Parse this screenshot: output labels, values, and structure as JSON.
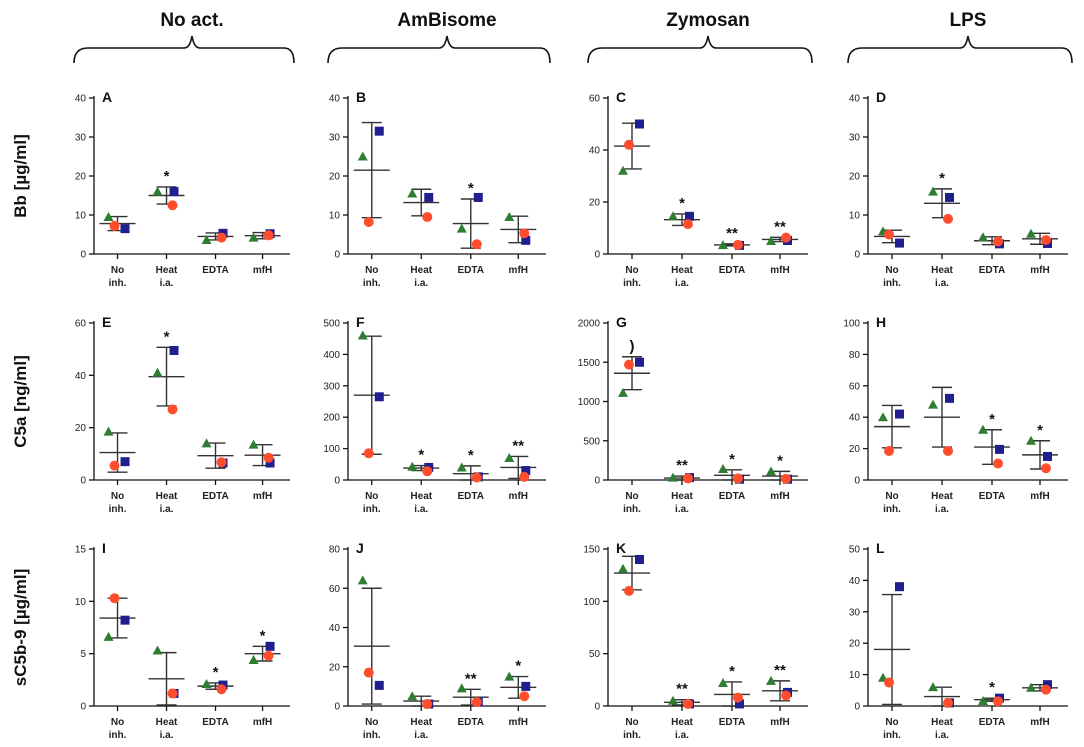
{
  "colors": {
    "square": "#1f1f8f",
    "triangle": "#2e7d32",
    "circle": "#ff4d2e",
    "axis": "#111111"
  },
  "chart_data": {
    "type": "scatter",
    "description_type": "mean-sd-dotplot",
    "columns": [
      "No act.",
      "AmBisome",
      "Zymosan",
      "LPS"
    ],
    "rows": [
      {
        "label": "Bb [µg/ml]"
      },
      {
        "label": "C5a [ng/ml]"
      },
      {
        "label": "sC5b-9 [µg/ml]"
      }
    ],
    "categories": [
      [
        "No",
        "inh."
      ],
      [
        "Heat",
        "i.a."
      ],
      [
        "EDTA"
      ],
      [
        "mfH"
      ]
    ],
    "panels": [
      {
        "letter": "A",
        "ylim": [
          0,
          40
        ],
        "yticks": [
          0,
          10,
          20,
          30,
          40
        ],
        "groups": [
          {
            "mean": 7.8,
            "sd": 1.8,
            "square": 6.5,
            "triangle": 9.5,
            "circle": 7.2,
            "sig": ""
          },
          {
            "mean": 15,
            "sd": 2.2,
            "square": 16,
            "triangle": 16,
            "circle": 12.5,
            "sig": "*"
          },
          {
            "mean": 4.5,
            "sd": 0.9,
            "square": 5.3,
            "triangle": 3.6,
            "circle": 4.2,
            "sig": ""
          },
          {
            "mean": 4.7,
            "sd": 0.8,
            "square": 5.2,
            "triangle": 4.2,
            "circle": 4.8,
            "sig": ""
          }
        ]
      },
      {
        "letter": "B",
        "ylim": [
          0,
          40
        ],
        "yticks": [
          0,
          10,
          20,
          30,
          40
        ],
        "groups": [
          {
            "mean": 21.5,
            "sd": 12.2,
            "square": 31.5,
            "triangle": 25,
            "circle": 8.2,
            "sig": ""
          },
          {
            "mean": 13.2,
            "sd": 3.4,
            "square": 14.5,
            "triangle": 15.5,
            "circle": 9.5,
            "sig": ""
          },
          {
            "mean": 7.8,
            "sd": 6.3,
            "square": 14.5,
            "triangle": 6.5,
            "circle": 2.5,
            "sig": "*"
          },
          {
            "mean": 6.3,
            "sd": 3.4,
            "square": 3.5,
            "triangle": 9.5,
            "circle": 5.3,
            "sig": ""
          }
        ]
      },
      {
        "letter": "C",
        "ylim": [
          0,
          60
        ],
        "yticks": [
          0,
          20,
          40,
          60
        ],
        "groups": [
          {
            "mean": 41.5,
            "sd": 8.8,
            "square": 50,
            "triangle": 32,
            "circle": 42,
            "sig": ""
          },
          {
            "mean": 13.2,
            "sd": 2.2,
            "square": 14.5,
            "triangle": 14.5,
            "circle": 11.5,
            "sig": "*"
          },
          {
            "mean": 3.5,
            "sd": 0.4,
            "square": 3.3,
            "triangle": 3.4,
            "circle": 3.5,
            "sig": "**"
          },
          {
            "mean": 5.6,
            "sd": 0.8,
            "square": 5.2,
            "triangle": 5.0,
            "circle": 6.3,
            "sig": "**"
          }
        ]
      },
      {
        "letter": "D",
        "ylim": [
          0,
          40
        ],
        "yticks": [
          0,
          10,
          20,
          30,
          40
        ],
        "groups": [
          {
            "mean": 4.5,
            "sd": 1.6,
            "square": 2.8,
            "triangle": 5.8,
            "circle": 5.0,
            "sig": ""
          },
          {
            "mean": 13,
            "sd": 3.7,
            "square": 14.5,
            "triangle": 16,
            "circle": 9.0,
            "sig": "*"
          },
          {
            "mean": 3.4,
            "sd": 1.0,
            "square": 2.6,
            "triangle": 4.3,
            "circle": 3.2,
            "sig": ""
          },
          {
            "mean": 3.9,
            "sd": 1.4,
            "square": 2.7,
            "triangle": 5.2,
            "circle": 3.6,
            "sig": ""
          }
        ]
      },
      {
        "letter": "E",
        "ylim": [
          0,
          60
        ],
        "yticks": [
          0,
          20,
          40,
          60
        ],
        "groups": [
          {
            "mean": 10.5,
            "sd": 7.5,
            "square": 7.0,
            "triangle": 18.5,
            "circle": 5.5,
            "sig": ""
          },
          {
            "mean": 39.5,
            "sd": 11.2,
            "square": 49.5,
            "triangle": 41,
            "circle": 27,
            "sig": "*"
          },
          {
            "mean": 9.3,
            "sd": 4.8,
            "square": 6.5,
            "triangle": 14,
            "circle": 6.8,
            "sig": ""
          },
          {
            "mean": 9.5,
            "sd": 4.0,
            "square": 6.5,
            "triangle": 13.5,
            "circle": 8.5,
            "sig": ""
          }
        ]
      },
      {
        "letter": "F",
        "ylim": [
          0,
          500
        ],
        "yticks": [
          0,
          100,
          200,
          300,
          400,
          500
        ],
        "groups": [
          {
            "mean": 270,
            "sd": 188,
            "square": 265,
            "triangle": 460,
            "circle": 85,
            "sig": ""
          },
          {
            "mean": 38,
            "sd": 8,
            "square": 40,
            "triangle": 42,
            "circle": 28,
            "sig": "*"
          },
          {
            "mean": 20,
            "sd": 25,
            "square": 10,
            "triangle": 40,
            "circle": 8,
            "sig": "*"
          },
          {
            "mean": 40,
            "sd": 35,
            "square": 30,
            "triangle": 70,
            "circle": 10,
            "sig": "**"
          }
        ]
      },
      {
        "letter": "G",
        "ylim": [
          0,
          2000
        ],
        "yticks": [
          0,
          500,
          1000,
          1500,
          2000
        ],
        "groups": [
          {
            "mean": 1360,
            "sd": 210,
            "square": 1500,
            "triangle": 1110,
            "circle": 1470,
            "sig": ")"
          },
          {
            "mean": 25,
            "sd": 25,
            "square": 30,
            "triangle": 30,
            "circle": 20,
            "sig": "**"
          },
          {
            "mean": 60,
            "sd": 70,
            "square": 10,
            "triangle": 140,
            "circle": 20,
            "sig": "*"
          },
          {
            "mean": 50,
            "sd": 60,
            "square": 10,
            "triangle": 110,
            "circle": 15,
            "sig": "*"
          }
        ]
      },
      {
        "letter": "H",
        "ylim": [
          0,
          100
        ],
        "yticks": [
          0,
          20,
          40,
          60,
          80,
          100
        ],
        "groups": [
          {
            "mean": 34,
            "sd": 13.5,
            "square": 42,
            "triangle": 40,
            "circle": 18.5,
            "sig": ""
          },
          {
            "mean": 40,
            "sd": 19,
            "square": 52,
            "triangle": 48,
            "circle": 18.5,
            "sig": ""
          },
          {
            "mean": 21,
            "sd": 11,
            "square": 19.5,
            "triangle": 32,
            "circle": 10.5,
            "sig": "*"
          },
          {
            "mean": 16,
            "sd": 9,
            "square": 15,
            "triangle": 25,
            "circle": 7.5,
            "sig": "*"
          }
        ]
      },
      {
        "letter": "I",
        "ylim": [
          0,
          15
        ],
        "yticks": [
          0,
          5,
          10,
          15
        ],
        "groups": [
          {
            "mean": 8.4,
            "sd": 1.9,
            "square": 8.2,
            "triangle": 6.6,
            "circle": 10.3,
            "sig": ""
          },
          {
            "mean": 2.6,
            "sd": 2.5,
            "square": 1.2,
            "triangle": 5.3,
            "circle": 1.2,
            "sig": ""
          },
          {
            "mean": 1.9,
            "sd": 0.3,
            "square": 2.0,
            "triangle": 2.1,
            "circle": 1.6,
            "sig": "*"
          },
          {
            "mean": 5.0,
            "sd": 0.7,
            "square": 5.7,
            "triangle": 4.4,
            "circle": 4.8,
            "sig": "*"
          }
        ]
      },
      {
        "letter": "J",
        "ylim": [
          0,
          80
        ],
        "yticks": [
          0,
          20,
          40,
          60,
          80
        ],
        "groups": [
          {
            "mean": 30.5,
            "sd": 29.5,
            "square": 10.5,
            "triangle": 64,
            "circle": 17,
            "sig": ""
          },
          {
            "mean": 2.5,
            "sd": 2.5,
            "square": 1.0,
            "triangle": 5.0,
            "circle": 1.0,
            "sig": ""
          },
          {
            "mean": 4.5,
            "sd": 4.0,
            "square": 2.0,
            "triangle": 9.0,
            "circle": 2.0,
            "sig": "**"
          },
          {
            "mean": 9.5,
            "sd": 5.5,
            "square": 10,
            "triangle": 15,
            "circle": 5.0,
            "sig": "*"
          }
        ]
      },
      {
        "letter": "K",
        "ylim": [
          0,
          150
        ],
        "yticks": [
          0,
          50,
          100,
          150
        ],
        "groups": [
          {
            "mean": 127,
            "sd": 16,
            "square": 140,
            "triangle": 131,
            "circle": 110,
            "sig": ""
          },
          {
            "mean": 3.5,
            "sd": 2.5,
            "square": 2.0,
            "triangle": 5.0,
            "circle": 2.0,
            "sig": "**"
          },
          {
            "mean": 11,
            "sd": 12,
            "square": 2.0,
            "triangle": 22,
            "circle": 8.0,
            "sig": "*"
          },
          {
            "mean": 14.5,
            "sd": 9.5,
            "square": 13,
            "triangle": 24,
            "circle": 10,
            "sig": "**"
          }
        ]
      },
      {
        "letter": "L",
        "ylim": [
          0,
          50
        ],
        "yticks": [
          0,
          10,
          20,
          30,
          40,
          50
        ],
        "groups": [
          {
            "mean": 18,
            "sd": 17.5,
            "square": 38,
            "triangle": 9,
            "circle": 7.5,
            "sig": ""
          },
          {
            "mean": 3.0,
            "sd": 3.0,
            "square": 1.0,
            "triangle": 6.0,
            "circle": 1.0,
            "sig": ""
          },
          {
            "mean": 2.0,
            "sd": 0.5,
            "square": 2.5,
            "triangle": 1.6,
            "circle": 1.5,
            "sig": "*"
          },
          {
            "mean": 5.8,
            "sd": 1.0,
            "square": 6.8,
            "triangle": 5.8,
            "circle": 5.2,
            "sig": ""
          }
        ]
      }
    ]
  }
}
